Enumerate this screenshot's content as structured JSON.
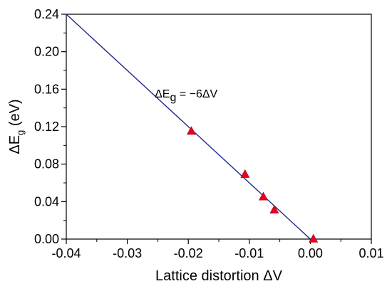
{
  "chart_data": {
    "type": "scatter",
    "xlabel": "Lattice distortion ΔV",
    "ylabel_main": "ΔE",
    "ylabel_sub": "g",
    "ylabel_unit": " (eV)",
    "xlim": [
      -0.04,
      0.01
    ],
    "ylim": [
      0.0,
      0.24
    ],
    "x_ticks": [
      -0.04,
      -0.03,
      -0.02,
      -0.01,
      0.0,
      0.01
    ],
    "x_tick_labels": [
      "-0.04",
      "-0.03",
      "-0.02",
      "-0.01",
      "0.00",
      "0.01"
    ],
    "y_ticks": [
      0.0,
      0.04,
      0.08,
      0.12,
      0.16,
      0.2,
      0.24
    ],
    "y_tick_labels": [
      "0.00",
      "0.04",
      "0.08",
      "0.12",
      "0.16",
      "0.20",
      "0.24"
    ],
    "grid": false,
    "series": [
      {
        "marker": "triangle",
        "color": "#e8001c",
        "points": [
          {
            "x": -0.0195,
            "y": 0.115
          },
          {
            "x": -0.0107,
            "y": 0.069
          },
          {
            "x": -0.0077,
            "y": 0.045
          },
          {
            "x": -0.0059,
            "y": 0.031
          },
          {
            "x": 0.0005,
            "y": 0.0
          }
        ]
      }
    ],
    "fit_line": {
      "color": "#1f2a8c",
      "slope": -6,
      "intercept": 0.0,
      "x_range": [
        -0.04,
        0.0
      ],
      "label_prefix": "ΔE",
      "label_sub": "g",
      "label_suffix": " = −6ΔV"
    }
  }
}
